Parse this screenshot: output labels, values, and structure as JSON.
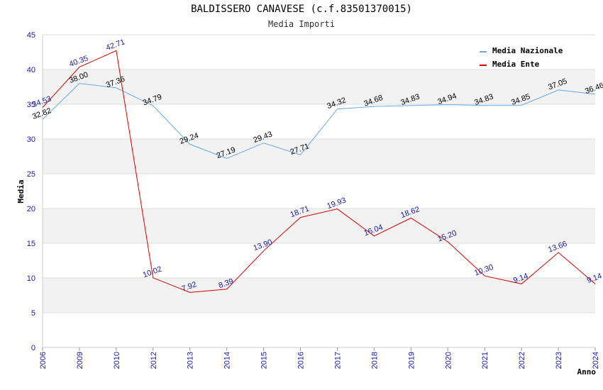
{
  "header": {
    "title": "BALDISSERO CANAVESE (c.f.83501370015)",
    "subtitle": "Media Importi"
  },
  "chart_data": {
    "type": "line",
    "title": "BALDISSERO CANAVESE (c.f.83501370015)",
    "subtitle": "Media Importi",
    "xlabel": "Anno",
    "ylabel": "Media",
    "ylim": [
      0,
      45
    ],
    "yticks": [
      0,
      5,
      10,
      15,
      20,
      25,
      30,
      35,
      40,
      45
    ],
    "categories": [
      "2006",
      "2009",
      "2010",
      "2012",
      "2013",
      "2014",
      "2015",
      "2016",
      "2017",
      "2018",
      "2019",
      "2020",
      "2021",
      "2022",
      "2023",
      "2024"
    ],
    "legend_position": "top-right",
    "grid": true,
    "series": [
      {
        "name": "Media Nazionale",
        "color": "#66aaee",
        "values": [
          32.82,
          38.0,
          37.36,
          34.79,
          29.24,
          27.19,
          29.43,
          27.71,
          34.32,
          34.68,
          34.83,
          34.94,
          34.83,
          34.85,
          37.05,
          36.46
        ],
        "labels": [
          "32.82",
          "38.00",
          "37.36",
          "34.79",
          "29.24",
          "27.19",
          "29.43",
          "27.71",
          "34.32",
          "34.68",
          "34.83",
          "34.94",
          "34.83",
          "34.85",
          "37.05",
          "36.46"
        ]
      },
      {
        "name": "Media Ente",
        "color": "#dd0000",
        "values": [
          34.53,
          40.35,
          42.71,
          10.02,
          7.92,
          8.39,
          13.9,
          18.71,
          19.93,
          16.04,
          18.62,
          15.2,
          10.3,
          9.14,
          13.66,
          9.14
        ],
        "labels": [
          "34.53",
          "40.35",
          "42.71",
          "10.02",
          "7.92",
          "8.39",
          "13.90",
          "18.71",
          "19.93",
          "16.04",
          "18.62",
          "15.20",
          "10.30",
          "9.14",
          "13.66",
          "9.14"
        ]
      }
    ]
  }
}
